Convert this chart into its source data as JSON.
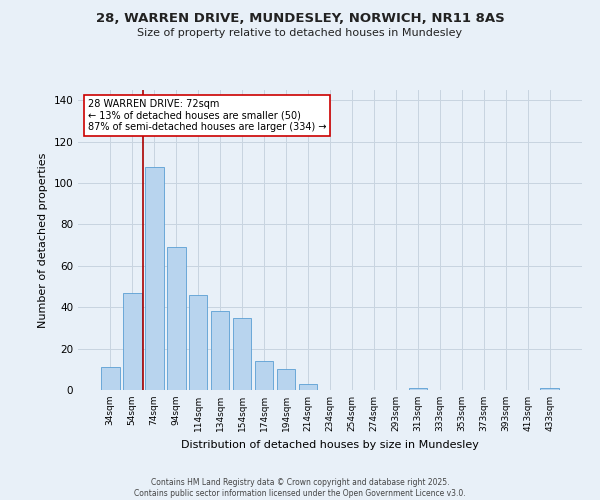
{
  "title": "28, WARREN DRIVE, MUNDESLEY, NORWICH, NR11 8AS",
  "subtitle": "Size of property relative to detached houses in Mundesley",
  "xlabel": "Distribution of detached houses by size in Mundesley",
  "ylabel": "Number of detached properties",
  "bar_color": "#b8d4ee",
  "bar_edge_color": "#5a9fd4",
  "background_color": "#e8f0f8",
  "grid_color": "#c8d4e0",
  "categories": [
    "34sqm",
    "54sqm",
    "74sqm",
    "94sqm",
    "114sqm",
    "134sqm",
    "154sqm",
    "174sqm",
    "194sqm",
    "214sqm",
    "234sqm",
    "254sqm",
    "274sqm",
    "293sqm",
    "313sqm",
    "333sqm",
    "353sqm",
    "373sqm",
    "393sqm",
    "413sqm",
    "433sqm"
  ],
  "values": [
    11,
    47,
    108,
    69,
    46,
    38,
    35,
    14,
    10,
    3,
    0,
    0,
    0,
    0,
    1,
    0,
    0,
    0,
    0,
    0,
    1
  ],
  "ylim": [
    0,
    145
  ],
  "yticks": [
    0,
    20,
    40,
    60,
    80,
    100,
    120,
    140
  ],
  "marker_color": "#aa0000",
  "annotation_title": "28 WARREN DRIVE: 72sqm",
  "annotation_line1": "← 13% of detached houses are smaller (50)",
  "annotation_line2": "87% of semi-detached houses are larger (334) →",
  "annotation_box_color": "#ffffff",
  "annotation_box_edge": "#cc0000",
  "footer1": "Contains HM Land Registry data © Crown copyright and database right 2025.",
  "footer2": "Contains public sector information licensed under the Open Government Licence v3.0."
}
